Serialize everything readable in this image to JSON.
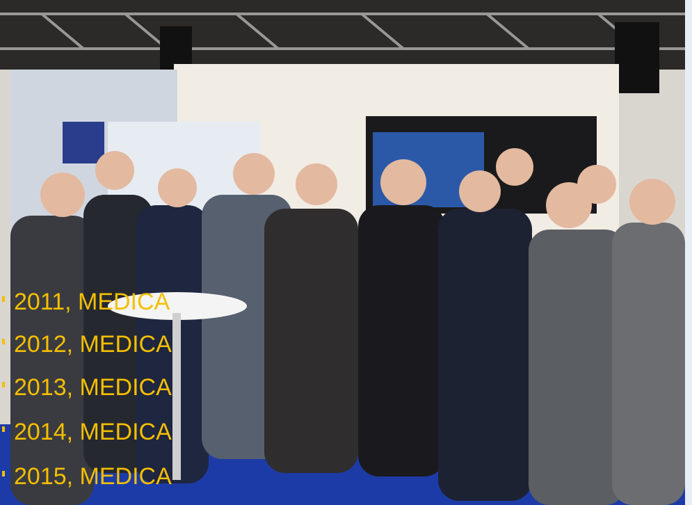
{
  "list": {
    "items": [
      "2011, MEDICA",
      "2012, MEDICA",
      "2013, MEDICA",
      "2014, MEDICA",
      "2015, MEDICA"
    ]
  }
}
